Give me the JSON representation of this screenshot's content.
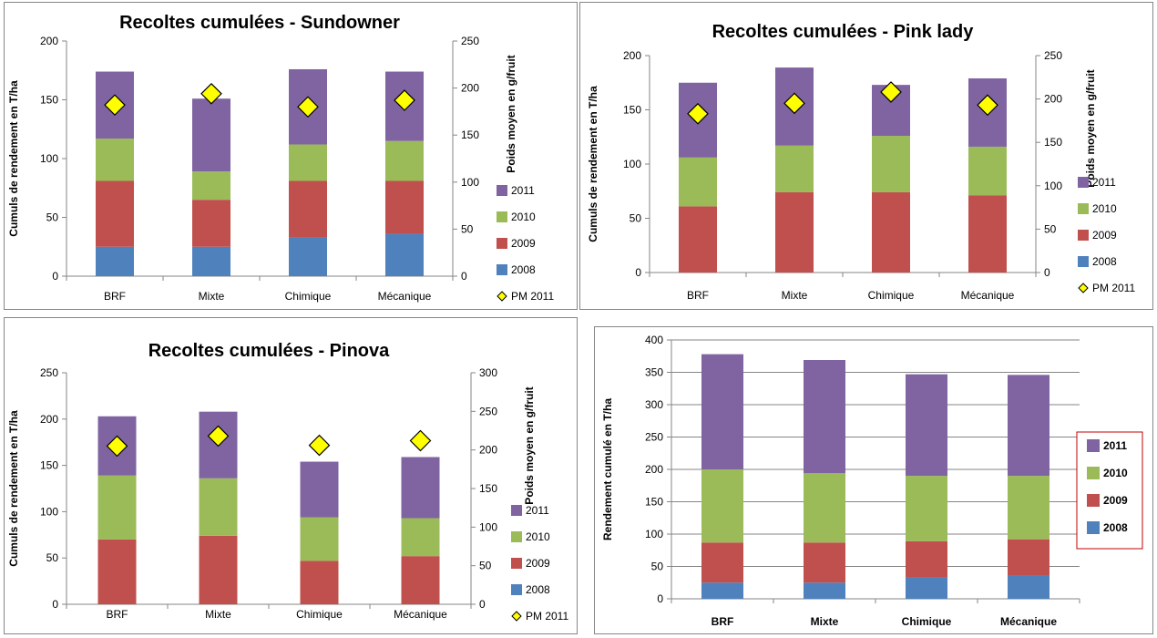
{
  "colors": {
    "2008": "#4f81bd",
    "2009": "#c0504d",
    "2010": "#9bbb59",
    "2011": "#8064a2",
    "pm": "#ffff00",
    "grid": "#868686",
    "legend_border": "#c00000"
  },
  "chart_data": [
    {
      "type": "bar",
      "title": "Recoltes cumulées - Sundowner",
      "categories": [
        "BRF",
        "Mixte",
        "Chimique",
        "Mécanique"
      ],
      "ylabel": "Cumuls de rendement en T/ha",
      "y2label": "Poids moyen en g/fruit",
      "ylim": [
        0,
        200
      ],
      "yticks": [
        "0",
        "50",
        "100",
        "150",
        "200"
      ],
      "y2lim": [
        0,
        250
      ],
      "y2ticks": [
        "0",
        "50",
        "100",
        "150",
        "200",
        "250"
      ],
      "series": [
        {
          "name": "2008",
          "values": [
            25,
            25,
            33,
            36
          ]
        },
        {
          "name": "2009",
          "values": [
            56,
            40,
            48,
            45
          ]
        },
        {
          "name": "2010",
          "values": [
            36,
            24,
            31,
            34
          ]
        },
        {
          "name": "2011",
          "values": [
            57,
            62,
            64,
            59
          ]
        }
      ],
      "pm": {
        "name": "PM 2011",
        "values": [
          182,
          194,
          180,
          187
        ]
      },
      "legend": [
        "2011",
        "2010",
        "2009",
        "2008",
        "PM 2011"
      ]
    },
    {
      "type": "bar",
      "title": "Recoltes cumulées - Pink lady",
      "categories": [
        "BRF",
        "Mixte",
        "Chimique",
        "Mécanique"
      ],
      "ylabel": "Cumuls de rendement en T/ha",
      "y2label": "Poids moyen en g/fruit",
      "ylim": [
        0,
        200
      ],
      "yticks": [
        "0",
        "50",
        "100",
        "150",
        "200"
      ],
      "y2lim": [
        0,
        250
      ],
      "y2ticks": [
        "0",
        "50",
        "100",
        "150",
        "200",
        "250"
      ],
      "series": [
        {
          "name": "2008",
          "values": [
            0,
            0,
            0,
            0
          ]
        },
        {
          "name": "2009",
          "values": [
            61,
            74,
            74,
            71
          ]
        },
        {
          "name": "2010",
          "values": [
            45,
            43,
            52,
            45
          ]
        },
        {
          "name": "2011",
          "values": [
            69,
            72,
            47,
            63
          ]
        }
      ],
      "pm": {
        "name": "PM 2011",
        "values": [
          183,
          195,
          208,
          193
        ]
      },
      "legend": [
        "2011",
        "2010",
        "2009",
        "2008",
        "PM 2011"
      ]
    },
    {
      "type": "bar",
      "title": "Recoltes cumulées - Pinova",
      "categories": [
        "BRF",
        "Mixte",
        "Chimique",
        "Mécanique"
      ],
      "ylabel": "Cumuls de rendement en T/ha",
      "y2label": "Poids moyen en g/fruit",
      "ylim": [
        0,
        250
      ],
      "yticks": [
        "0",
        "50",
        "100",
        "150",
        "200",
        "250"
      ],
      "y2lim": [
        0,
        300
      ],
      "y2ticks": [
        "0",
        "50",
        "100",
        "150",
        "200",
        "250",
        "300"
      ],
      "series": [
        {
          "name": "2008",
          "values": [
            0,
            0,
            0,
            0
          ]
        },
        {
          "name": "2009",
          "values": [
            70,
            74,
            47,
            52
          ]
        },
        {
          "name": "2010",
          "values": [
            69,
            62,
            47,
            41
          ]
        },
        {
          "name": "2011",
          "values": [
            64,
            72,
            60,
            66
          ]
        }
      ],
      "pm": {
        "name": "PM 2011",
        "values": [
          205,
          218,
          206,
          212
        ]
      },
      "legend": [
        "2011",
        "2010",
        "2009",
        "2008",
        "PM 2011"
      ]
    },
    {
      "type": "bar",
      "title": "",
      "categories": [
        "BRF",
        "Mixte",
        "Chimique",
        "Mécanique"
      ],
      "ylabel": "Rendement cumulé en T/ha",
      "ylim": [
        0,
        400
      ],
      "yticks": [
        "0",
        "50",
        "100",
        "150",
        "200",
        "250",
        "300",
        "350",
        "400"
      ],
      "gridlines": true,
      "series": [
        {
          "name": "2008",
          "values": [
            25,
            25,
            33,
            36
          ]
        },
        {
          "name": "2009",
          "values": [
            62,
            62,
            56,
            56
          ]
        },
        {
          "name": "2010",
          "values": [
            113,
            107,
            101,
            98
          ]
        },
        {
          "name": "2011",
          "values": [
            178,
            175,
            157,
            156
          ]
        }
      ],
      "legend": [
        "2011",
        "2010",
        "2009",
        "2008"
      ]
    }
  ]
}
